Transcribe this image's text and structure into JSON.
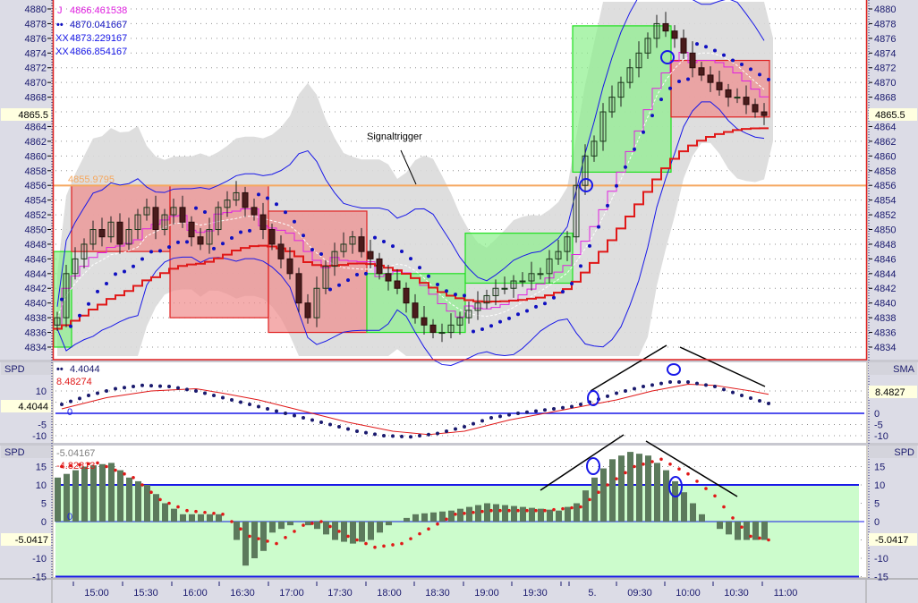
{
  "colors": {
    "plot_bg": "#ffffff",
    "axis_bg": "#dcdce6",
    "axis_text": "#1a1a6e",
    "frame_red": "#e02020",
    "green_box": "#8cf08c",
    "red_box": "#f08c8c",
    "band": "#dadada",
    "orange": "#f5a860",
    "dots": "#1010c0",
    "red_line": "#e01818",
    "magenta": "#e020e0",
    "blue": "#1818e8",
    "hist": "#5c7a5c",
    "spd2_fill": "#ccfccc",
    "highlight": "#ffffe0"
  },
  "main": {
    "legend": [
      {
        "icon": "j-glyph",
        "text": "4866.461538",
        "color": "#e020e0"
      },
      {
        "icon": "dots-icon",
        "text": "4870.041667",
        "color": "#1010c0"
      },
      {
        "icon": "xx-glyph",
        "text": "4873.229167",
        "color": "#1818e8"
      },
      {
        "icon": "xx-glyph",
        "text": "4866.854167",
        "color": "#1818e8"
      }
    ],
    "icon_glyphs": {
      "j": "J",
      "dots": "••",
      "xx": "XX"
    },
    "orange_level_label": "4855.9795",
    "annotation": "Signaltrigger",
    "last_price": "4865.5"
  },
  "spd1": {
    "left_title": "SPD",
    "right_title": "SMA",
    "legend": [
      {
        "text": "4.4044",
        "color": "#1a1a6e"
      },
      {
        "text": "8.48274",
        "color": "#e01818"
      },
      {
        "text": "0",
        "color": "#1818e8"
      }
    ],
    "left_value": "4.4044",
    "right_value": "8.4827"
  },
  "spd2": {
    "left_title": "SPD",
    "right_title": "SPD",
    "legend": [
      {
        "text": "-5.04167",
        "color": "#808080"
      },
      {
        "text": "-4.82813",
        "color": "#e01818"
      },
      {
        "text": "0",
        "color": "#1818e8"
      }
    ],
    "left_value": "-5.0417",
    "right_value": "-5.0417"
  },
  "chart_data": [
    {
      "type": "candlestick",
      "title": "",
      "ylim": [
        4833,
        4881
      ],
      "y_ticks": [
        4834,
        4836,
        4838,
        4840,
        4842,
        4844,
        4846,
        4848,
        4850,
        4852,
        4854,
        4856,
        4858,
        4860,
        4862,
        4864,
        4866,
        4868,
        4870,
        4872,
        4874,
        4876,
        4878,
        4880
      ],
      "grid": true,
      "x_tick_labels": [
        "15:00",
        "15:30",
        "16:00",
        "16:30",
        "17:00",
        "17:30",
        "18:00",
        "18:30",
        "19:00",
        "19:30",
        "5.",
        "09:30",
        "10:00",
        "10:30",
        "11:00"
      ],
      "close": [
        4838,
        4844,
        4846,
        4848,
        4850,
        4849,
        4851,
        4848,
        4850,
        4852,
        4853,
        4850,
        4852,
        4853,
        4851,
        4849,
        4848,
        4850,
        4853,
        4854,
        4855,
        4853,
        4852,
        4850,
        4848,
        4846,
        4844,
        4840,
        4838,
        4842,
        4845,
        4847,
        4848,
        4849,
        4847,
        4846,
        4844,
        4843,
        4842,
        4840,
        4838,
        4837,
        4836,
        4836,
        4837,
        4838,
        4839,
        4840,
        4841,
        4842,
        4842,
        4843,
        4843,
        4844,
        4844,
        4846,
        4847,
        4849,
        4856,
        4860,
        4862,
        4866,
        4868,
        4870,
        4872,
        4874,
        4876,
        4878,
        4877,
        4876,
        4874,
        4872,
        4871,
        4870,
        4869,
        4868,
        4868,
        4867,
        4866,
        4865.5
      ],
      "orange_level": 4855.9795,
      "boxes": [
        {
          "from": 0,
          "to": 2,
          "high": 4847,
          "low": 4834,
          "kind": "up"
        },
        {
          "from": 2,
          "to": 13,
          "high": 4856,
          "low": 4847,
          "kind": "down"
        },
        {
          "from": 13,
          "to": 24,
          "high": 4856,
          "low": 4838,
          "kind": "down"
        },
        {
          "from": 24,
          "to": 35,
          "high": 4852.5,
          "low": 4836,
          "kind": "down"
        },
        {
          "from": 35,
          "to": 46,
          "high": 4844,
          "low": 4836,
          "kind": "up"
        },
        {
          "from": 46,
          "to": 58,
          "high": 4849.5,
          "low": 4842.7,
          "kind": "up"
        },
        {
          "from": 58,
          "to": 69,
          "high": 4877.7,
          "low": 4857.8,
          "kind": "up"
        },
        {
          "from": 69,
          "to": 80,
          "high": 4873,
          "low": 4865.3,
          "kind": "down"
        }
      ]
    },
    {
      "type": "line",
      "name": "SPD / SMA",
      "ylim": [
        -12,
        16
      ],
      "y_ticks": [
        10,
        5,
        0,
        -5,
        -10
      ],
      "dots_keypoints": [
        [
          0,
          4
        ],
        [
          3,
          8
        ],
        [
          6,
          11
        ],
        [
          9,
          12.5
        ],
        [
          12,
          12
        ],
        [
          15,
          10
        ],
        [
          18,
          7
        ],
        [
          21,
          4
        ],
        [
          24,
          1
        ],
        [
          27,
          -2
        ],
        [
          30,
          -5
        ],
        [
          33,
          -8
        ],
        [
          36,
          -10
        ],
        [
          39,
          -10.5
        ],
        [
          42,
          -9
        ],
        [
          45,
          -6
        ],
        [
          48,
          -2
        ],
        [
          51,
          0
        ],
        [
          54,
          1.5
        ],
        [
          57,
          3
        ],
        [
          59,
          5
        ],
        [
          62,
          9
        ],
        [
          65,
          12
        ],
        [
          68,
          14
        ],
        [
          70,
          14
        ],
        [
          73,
          12
        ],
        [
          76,
          8
        ],
        [
          79,
          4.4
        ]
      ],
      "sma_keypoints": [
        [
          0,
          2
        ],
        [
          5,
          7
        ],
        [
          10,
          10
        ],
        [
          15,
          11
        ],
        [
          18,
          9
        ],
        [
          22,
          6
        ],
        [
          27,
          1
        ],
        [
          32,
          -4
        ],
        [
          37,
          -8
        ],
        [
          41,
          -9.5
        ],
        [
          45,
          -8
        ],
        [
          50,
          -3
        ],
        [
          54,
          0
        ],
        [
          58,
          3
        ],
        [
          62,
          6
        ],
        [
          66,
          10
        ],
        [
          70,
          13
        ],
        [
          73,
          12.5
        ],
        [
          77,
          10
        ],
        [
          79,
          8.5
        ]
      ]
    },
    {
      "type": "bar",
      "name": "SPD histogram",
      "ylim": [
        -16,
        18
      ],
      "y_ticks": [
        15,
        10,
        5,
        0,
        -5,
        -10,
        -15
      ],
      "zone": [
        -15,
        10
      ],
      "bars_keypoints": [
        [
          0,
          12
        ],
        [
          3,
          15
        ],
        [
          6,
          16
        ],
        [
          8,
          12
        ],
        [
          10,
          10
        ],
        [
          12,
          5
        ],
        [
          14,
          2
        ],
        [
          18,
          2
        ],
        [
          19,
          0
        ],
        [
          20,
          -5
        ],
        [
          21,
          -12
        ],
        [
          23,
          -8
        ],
        [
          24,
          -3
        ],
        [
          27,
          0
        ],
        [
          29,
          -2
        ],
        [
          31,
          -5
        ],
        [
          33,
          -6
        ],
        [
          35,
          -5
        ],
        [
          37,
          -1
        ],
        [
          40,
          2
        ],
        [
          44,
          3
        ],
        [
          48,
          5
        ],
        [
          52,
          4
        ],
        [
          56,
          3
        ],
        [
          58,
          5
        ],
        [
          60,
          12
        ],
        [
          62,
          17
        ],
        [
          64,
          19
        ],
        [
          66,
          18
        ],
        [
          68,
          14
        ],
        [
          70,
          8
        ],
        [
          72,
          2
        ],
        [
          74,
          -2
        ],
        [
          76,
          -5
        ],
        [
          79,
          -5
        ]
      ],
      "dots_keypoints": [
        [
          0,
          15
        ],
        [
          4,
          16
        ],
        [
          8,
          12
        ],
        [
          11,
          6
        ],
        [
          14,
          3
        ],
        [
          18,
          2
        ],
        [
          21,
          -4
        ],
        [
          24,
          -6
        ],
        [
          27,
          -1
        ],
        [
          29,
          0
        ],
        [
          32,
          -4
        ],
        [
          35,
          -7
        ],
        [
          38,
          -6
        ],
        [
          41,
          -2
        ],
        [
          44,
          2
        ],
        [
          48,
          3
        ],
        [
          54,
          3
        ],
        [
          58,
          4
        ],
        [
          61,
          10
        ],
        [
          64,
          15
        ],
        [
          67,
          17
        ],
        [
          70,
          13
        ],
        [
          73,
          7
        ],
        [
          75,
          1
        ],
        [
          77,
          -4
        ],
        [
          79,
          -5
        ]
      ]
    }
  ]
}
